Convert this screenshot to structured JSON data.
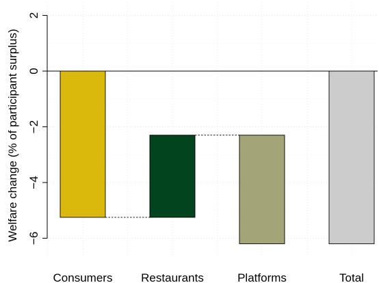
{
  "chart_data": {
    "type": "bar",
    "style": "waterfall",
    "categories": [
      "Consumers",
      "Restaurants",
      "Platforms",
      "Total"
    ],
    "bars": [
      {
        "label": "Consumers",
        "start": 0,
        "end": -5.25,
        "value": -5.25,
        "color": "#DAB80C"
      },
      {
        "label": "Restaurants",
        "start": -5.25,
        "end": -2.3,
        "value": 2.95,
        "color": "#02441E"
      },
      {
        "label": "Platforms",
        "start": -2.3,
        "end": -6.2,
        "value": -3.9,
        "color": "#A3A477"
      },
      {
        "label": "Total",
        "start": 0,
        "end": -6.2,
        "value": -6.2,
        "color": "#CCCCCC"
      }
    ],
    "connectors": [
      {
        "from": "Consumers",
        "to": "Restaurants",
        "level": -5.25
      },
      {
        "from": "Restaurants",
        "to": "Platforms",
        "level": -2.3
      }
    ],
    "title": "",
    "xlabel": "",
    "ylabel": "Welfare change (% of participant surplus)",
    "ylim": [
      -6.6,
      2.2
    ],
    "yticks": [
      2,
      0,
      -2,
      -4,
      -6
    ],
    "ytick_labels": [
      "2",
      "0",
      "−2",
      "−4",
      "−6"
    ],
    "grid": true,
    "zero_line": true
  }
}
